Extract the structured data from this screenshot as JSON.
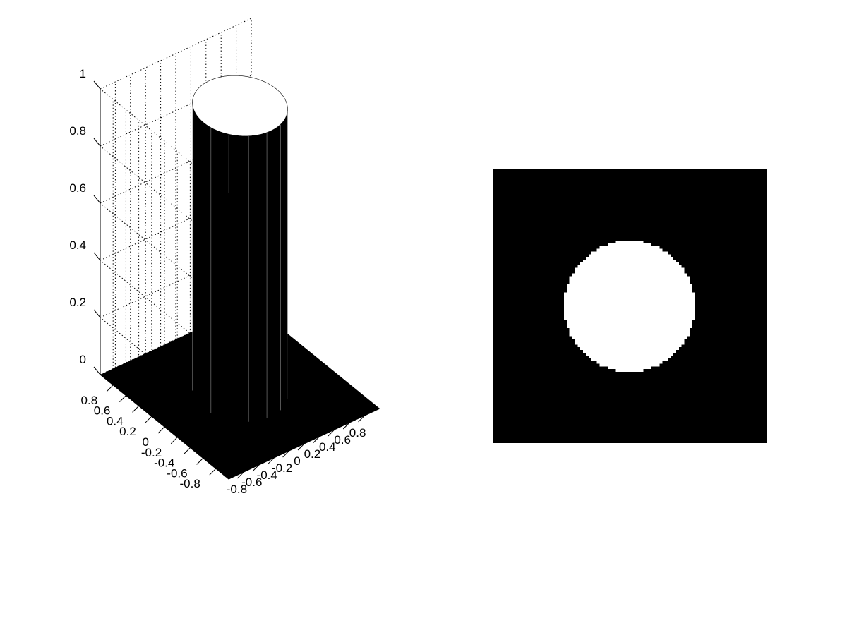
{
  "chart_data": [
    {
      "type": "surface",
      "title": "",
      "xlabel": "",
      "ylabel": "",
      "zlabel": "",
      "x_ticks": [
        "-0.8",
        "-0.6",
        "-0.4",
        "-0.2",
        "0",
        "0.2",
        "0.4",
        "0.6",
        "0.8"
      ],
      "y_ticks": [
        "-0.8",
        "-0.6",
        "-0.4",
        "-0.2",
        "0",
        "0.2",
        "0.4",
        "0.6",
        "0.8"
      ],
      "z_ticks": [
        "0",
        "0.2",
        "0.4",
        "0.6",
        "0.8",
        "1"
      ],
      "xlim": [
        -1,
        1
      ],
      "ylim": [
        -1,
        1
      ],
      "zlim": [
        0,
        1
      ],
      "grid": true,
      "surface": {
        "shape": "cylinder",
        "description_values": {
          "center_x": 0,
          "center_y": 0,
          "radius": 0.48,
          "height_inside": 1,
          "height_outside": 0,
          "base_half_width": 1
        }
      },
      "colors": {
        "surface": "#000000",
        "top": "#ffffff",
        "grid": "#000000"
      }
    },
    {
      "type": "heatmap",
      "title": "",
      "colormap": "gray",
      "values_inside_circle": 1,
      "values_outside_circle": 0,
      "circle": {
        "center_x": 0,
        "center_y": 0,
        "radius": 0.48
      },
      "xlim": [
        -1,
        1
      ],
      "ylim": [
        -1,
        1
      ]
    }
  ]
}
